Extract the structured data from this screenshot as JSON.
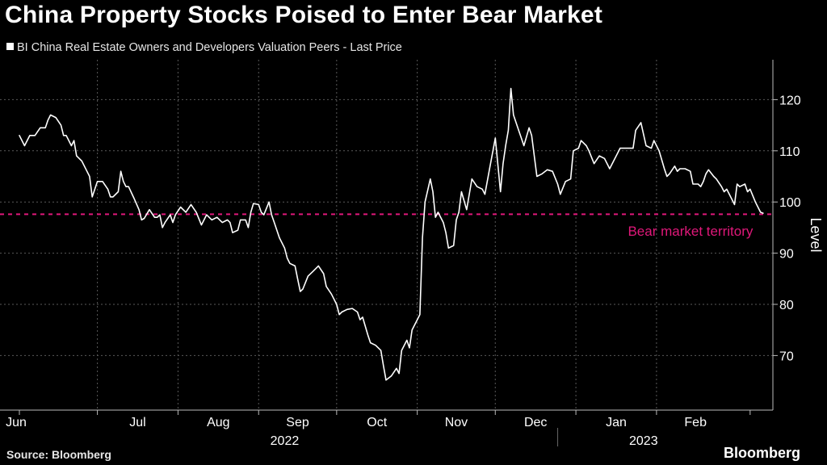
{
  "title": "China Property Stocks Poised to Enter Bear Market",
  "source": "Source: Bloomberg",
  "brand": "Bloomberg",
  "colors": {
    "background": "#000000",
    "line": "#ffffff",
    "threshold": "#e0187a",
    "grid": "#5a5a5a",
    "text": "#ffffff"
  },
  "chart_data": {
    "type": "line",
    "title": "China Property Stocks Poised to Enter Bear Market",
    "ylabel": "Level",
    "xlabel": "",
    "ylim": [
      61,
      127
    ],
    "yticks": [
      70,
      80,
      90,
      100,
      110,
      120
    ],
    "x_day_range": [
      0,
      281
    ],
    "month_ticks": [
      {
        "label": "Jun",
        "day": 0
      },
      {
        "label": "Jul",
        "day": 30
      },
      {
        "label": "Aug",
        "day": 61
      },
      {
        "label": "Sep",
        "day": 92
      },
      {
        "label": "Oct",
        "day": 122
      },
      {
        "label": "Nov",
        "day": 153
      },
      {
        "label": "Dec",
        "day": 183
      },
      {
        "label": "Jan",
        "day": 214
      },
      {
        "label": "Feb",
        "day": 245
      }
    ],
    "years": [
      {
        "label": "2022",
        "center_day": 102
      },
      {
        "label": "2023",
        "center_day": 240
      }
    ],
    "year_divider_day": 207,
    "series": [
      {
        "name": "BI China Real Estate Owners and Developers Valuation Peers - Last Price",
        "points": [
          [
            0,
            113
          ],
          [
            2,
            111
          ],
          [
            4,
            113
          ],
          [
            6,
            113
          ],
          [
            8,
            114.5
          ],
          [
            10,
            114.5
          ],
          [
            11,
            116
          ],
          [
            12,
            117
          ],
          [
            14,
            116.5
          ],
          [
            16,
            115
          ],
          [
            17,
            113
          ],
          [
            18,
            113
          ],
          [
            20,
            111
          ],
          [
            21,
            112
          ],
          [
            22,
            109
          ],
          [
            24,
            108
          ],
          [
            26,
            106
          ],
          [
            27,
            105
          ],
          [
            28,
            101
          ],
          [
            30,
            104
          ],
          [
            32,
            104
          ],
          [
            34,
            102.5
          ],
          [
            35,
            101
          ],
          [
            36,
            101
          ],
          [
            38,
            102
          ],
          [
            39,
            106
          ],
          [
            40,
            104
          ],
          [
            41,
            103
          ],
          [
            42,
            103
          ],
          [
            44,
            100.8
          ],
          [
            46,
            98.5
          ],
          [
            47,
            96.5
          ],
          [
            48,
            96.8
          ],
          [
            50,
            98.5
          ],
          [
            52,
            97
          ],
          [
            53,
            97
          ],
          [
            54,
            97.5
          ],
          [
            55,
            95
          ],
          [
            56,
            96
          ],
          [
            58,
            97.5
          ],
          [
            59,
            96
          ],
          [
            60,
            97.5
          ],
          [
            62,
            99
          ],
          [
            64,
            98
          ],
          [
            66,
            99.5
          ],
          [
            68,
            98
          ],
          [
            70,
            95.5
          ],
          [
            72,
            97.5
          ],
          [
            74,
            96.5
          ],
          [
            76,
            97
          ],
          [
            78,
            96
          ],
          [
            80,
            96.5
          ],
          [
            81,
            96
          ],
          [
            82,
            94
          ],
          [
            84,
            94.5
          ],
          [
            85,
            96.5
          ],
          [
            87,
            96.5
          ],
          [
            88,
            95
          ],
          [
            89,
            98
          ],
          [
            90,
            99.7
          ],
          [
            92,
            99.5
          ],
          [
            93,
            98
          ],
          [
            94,
            97.5
          ],
          [
            96,
            100
          ],
          [
            97,
            97.5
          ],
          [
            98,
            96
          ],
          [
            100,
            93
          ],
          [
            102,
            91
          ],
          [
            103,
            89
          ],
          [
            104,
            88
          ],
          [
            106,
            87.5
          ],
          [
            107,
            85
          ],
          [
            108,
            82.5
          ],
          [
            109,
            83
          ],
          [
            111,
            85.5
          ],
          [
            113,
            86.5
          ],
          [
            115,
            87.5
          ],
          [
            117,
            86
          ],
          [
            118,
            83.5
          ],
          [
            120,
            82
          ],
          [
            121,
            81
          ],
          [
            122,
            80
          ],
          [
            123,
            78
          ],
          [
            124,
            78.5
          ],
          [
            126,
            79
          ],
          [
            128,
            79.2
          ],
          [
            130,
            78.5
          ],
          [
            131,
            77
          ],
          [
            132,
            77.5
          ],
          [
            134,
            74
          ],
          [
            135,
            72.5
          ],
          [
            137,
            72
          ],
          [
            139,
            71
          ],
          [
            140,
            68
          ],
          [
            141,
            65.2
          ],
          [
            143,
            66
          ],
          [
            145,
            67.5
          ],
          [
            146,
            66.5
          ],
          [
            147,
            71
          ],
          [
            149,
            73
          ],
          [
            150,
            71.5
          ],
          [
            151,
            75
          ],
          [
            153,
            77
          ],
          [
            154,
            78
          ],
          [
            155,
            93
          ],
          [
            156,
            100
          ],
          [
            158,
            104.5
          ],
          [
            159,
            102
          ],
          [
            160,
            97
          ],
          [
            161,
            98
          ],
          [
            163,
            96
          ],
          [
            164,
            94
          ],
          [
            165,
            91
          ],
          [
            167,
            91.5
          ],
          [
            168,
            96.5
          ],
          [
            169,
            98
          ],
          [
            170,
            102
          ],
          [
            172,
            98.5
          ],
          [
            174,
            104.5
          ],
          [
            176,
            103
          ],
          [
            178,
            102.5
          ],
          [
            179,
            101.5
          ],
          [
            181,
            107
          ],
          [
            183,
            112.5
          ],
          [
            185,
            102
          ],
          [
            186,
            107.5
          ],
          [
            187,
            111
          ],
          [
            188,
            114
          ],
          [
            189,
            122.2
          ],
          [
            190,
            117
          ],
          [
            192,
            114
          ],
          [
            193,
            112.5
          ],
          [
            194,
            111
          ],
          [
            196,
            114.5
          ],
          [
            197,
            113
          ],
          [
            199,
            105
          ],
          [
            201,
            105.5
          ],
          [
            203,
            106.3
          ],
          [
            205,
            106
          ],
          [
            207,
            103.5
          ],
          [
            208,
            101.5
          ],
          [
            210,
            104
          ],
          [
            212,
            104.5
          ],
          [
            213,
            110
          ],
          [
            215,
            110.5
          ],
          [
            216,
            112
          ],
          [
            218,
            111
          ],
          [
            219,
            110
          ],
          [
            221,
            107.5
          ],
          [
            223,
            109
          ],
          [
            225,
            108.5
          ],
          [
            227,
            106.5
          ],
          [
            229,
            108.5
          ],
          [
            231,
            110.5
          ],
          [
            233,
            110.5
          ],
          [
            236,
            110.5
          ],
          [
            237,
            114
          ],
          [
            239,
            115.5
          ],
          [
            241,
            111
          ],
          [
            243,
            110.5
          ],
          [
            244,
            112
          ],
          [
            246,
            110
          ],
          [
            248,
            106.5
          ],
          [
            249,
            105
          ],
          [
            250,
            105.5
          ],
          [
            252,
            107
          ],
          [
            253,
            106
          ],
          [
            254,
            106.5
          ],
          [
            256,
            106.5
          ],
          [
            258,
            106
          ],
          [
            259,
            103.5
          ],
          [
            261,
            103.5
          ],
          [
            262,
            103
          ],
          [
            263,
            104
          ],
          [
            264,
            105.5
          ],
          [
            265,
            106.3
          ],
          [
            267,
            105
          ],
          [
            268,
            104.5
          ],
          [
            270,
            103
          ],
          [
            271,
            102
          ],
          [
            272,
            102.5
          ],
          [
            274,
            100.5
          ],
          [
            275,
            99.5
          ],
          [
            276,
            103.5
          ],
          [
            277,
            103
          ],
          [
            279,
            103.5
          ],
          [
            280,
            102
          ],
          [
            281,
            102.5
          ],
          [
            283,
            100
          ],
          [
            285,
            98
          ],
          [
            286,
            97.8
          ]
        ]
      }
    ],
    "threshold": {
      "value": 97.6,
      "label": "Bear market territory",
      "label_day": 234,
      "label_value": 93.4
    },
    "grid": true,
    "legend_position": "top-left"
  }
}
